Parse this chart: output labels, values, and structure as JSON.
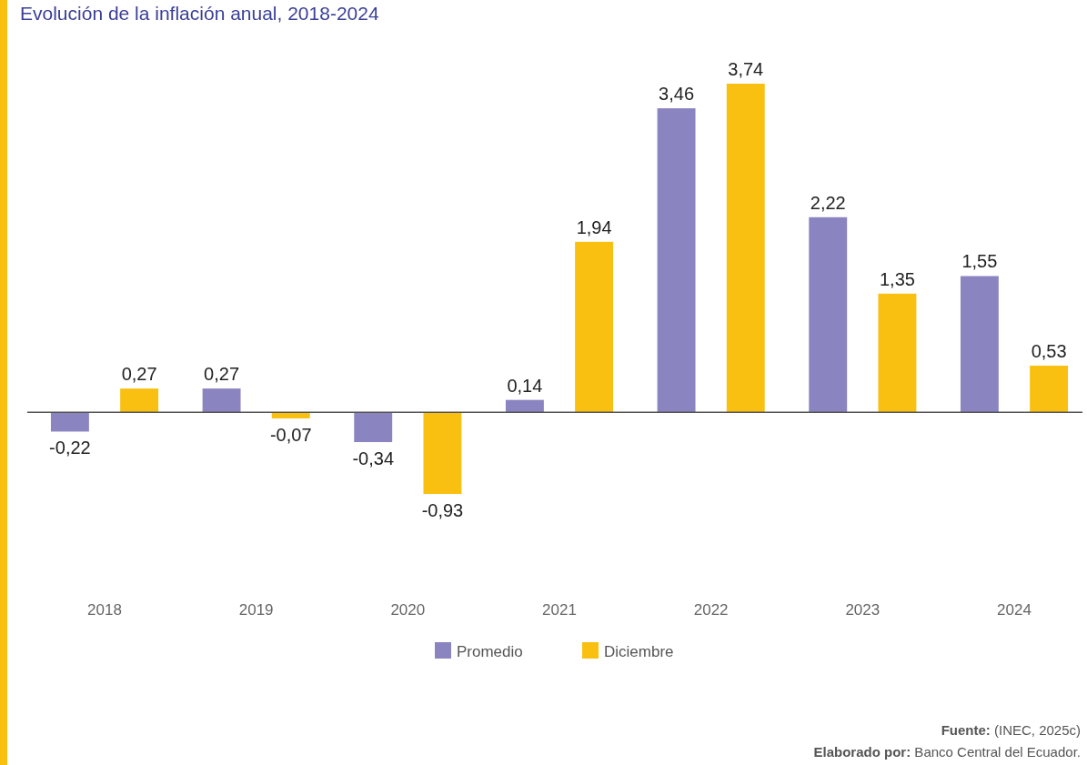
{
  "chart_data": {
    "type": "bar",
    "title": "Evolución de la inflación anual, 2018-2024",
    "categories": [
      "2018",
      "2019",
      "2020",
      "2021",
      "2022",
      "2023",
      "2024"
    ],
    "series": [
      {
        "name": "Promedio",
        "color": "#8a84c0",
        "values": [
          -0.22,
          0.27,
          -0.34,
          0.14,
          3.46,
          2.22,
          1.55
        ],
        "value_labels": [
          "-0,22",
          "0,27",
          "-0,34",
          "0,14",
          "3,46",
          "2,22",
          "1,55"
        ]
      },
      {
        "name": "Diciembre",
        "color": "#f9c012",
        "values": [
          0.27,
          -0.07,
          -0.93,
          1.94,
          3.74,
          1.35,
          0.53
        ],
        "value_labels": [
          "0,27",
          "-0,07",
          "-0,93",
          "1,94",
          "3,74",
          "1,35",
          "0,53"
        ]
      }
    ],
    "legend": "bottom",
    "tick_labels": "x",
    "annotations": [
      "Fuente: (INEC, 2025c)",
      "Elaborado por: Banco Central del Ecuador."
    ]
  }
}
